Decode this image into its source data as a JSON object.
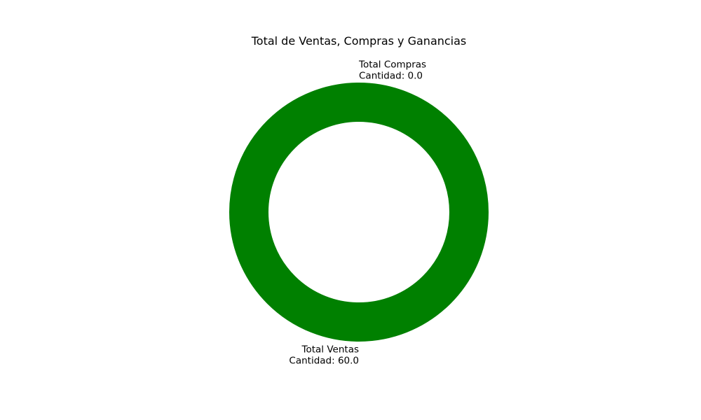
{
  "chart_data": {
    "type": "pie",
    "title": "Total de Ventas, Compras y Ganancias",
    "donut": true,
    "start_angle_deg": 90,
    "slices": [
      {
        "name": "Total Ventas",
        "value": 60.0,
        "label_line1": "Total Ventas",
        "label_line2": "Cantidad: 60.0",
        "color": "#008000"
      },
      {
        "name": "Total Compras",
        "value": 0.0,
        "label_line1": "Total Compras",
        "label_line2": "Cantidad: 0.0",
        "color": "#ff0000"
      }
    ]
  }
}
